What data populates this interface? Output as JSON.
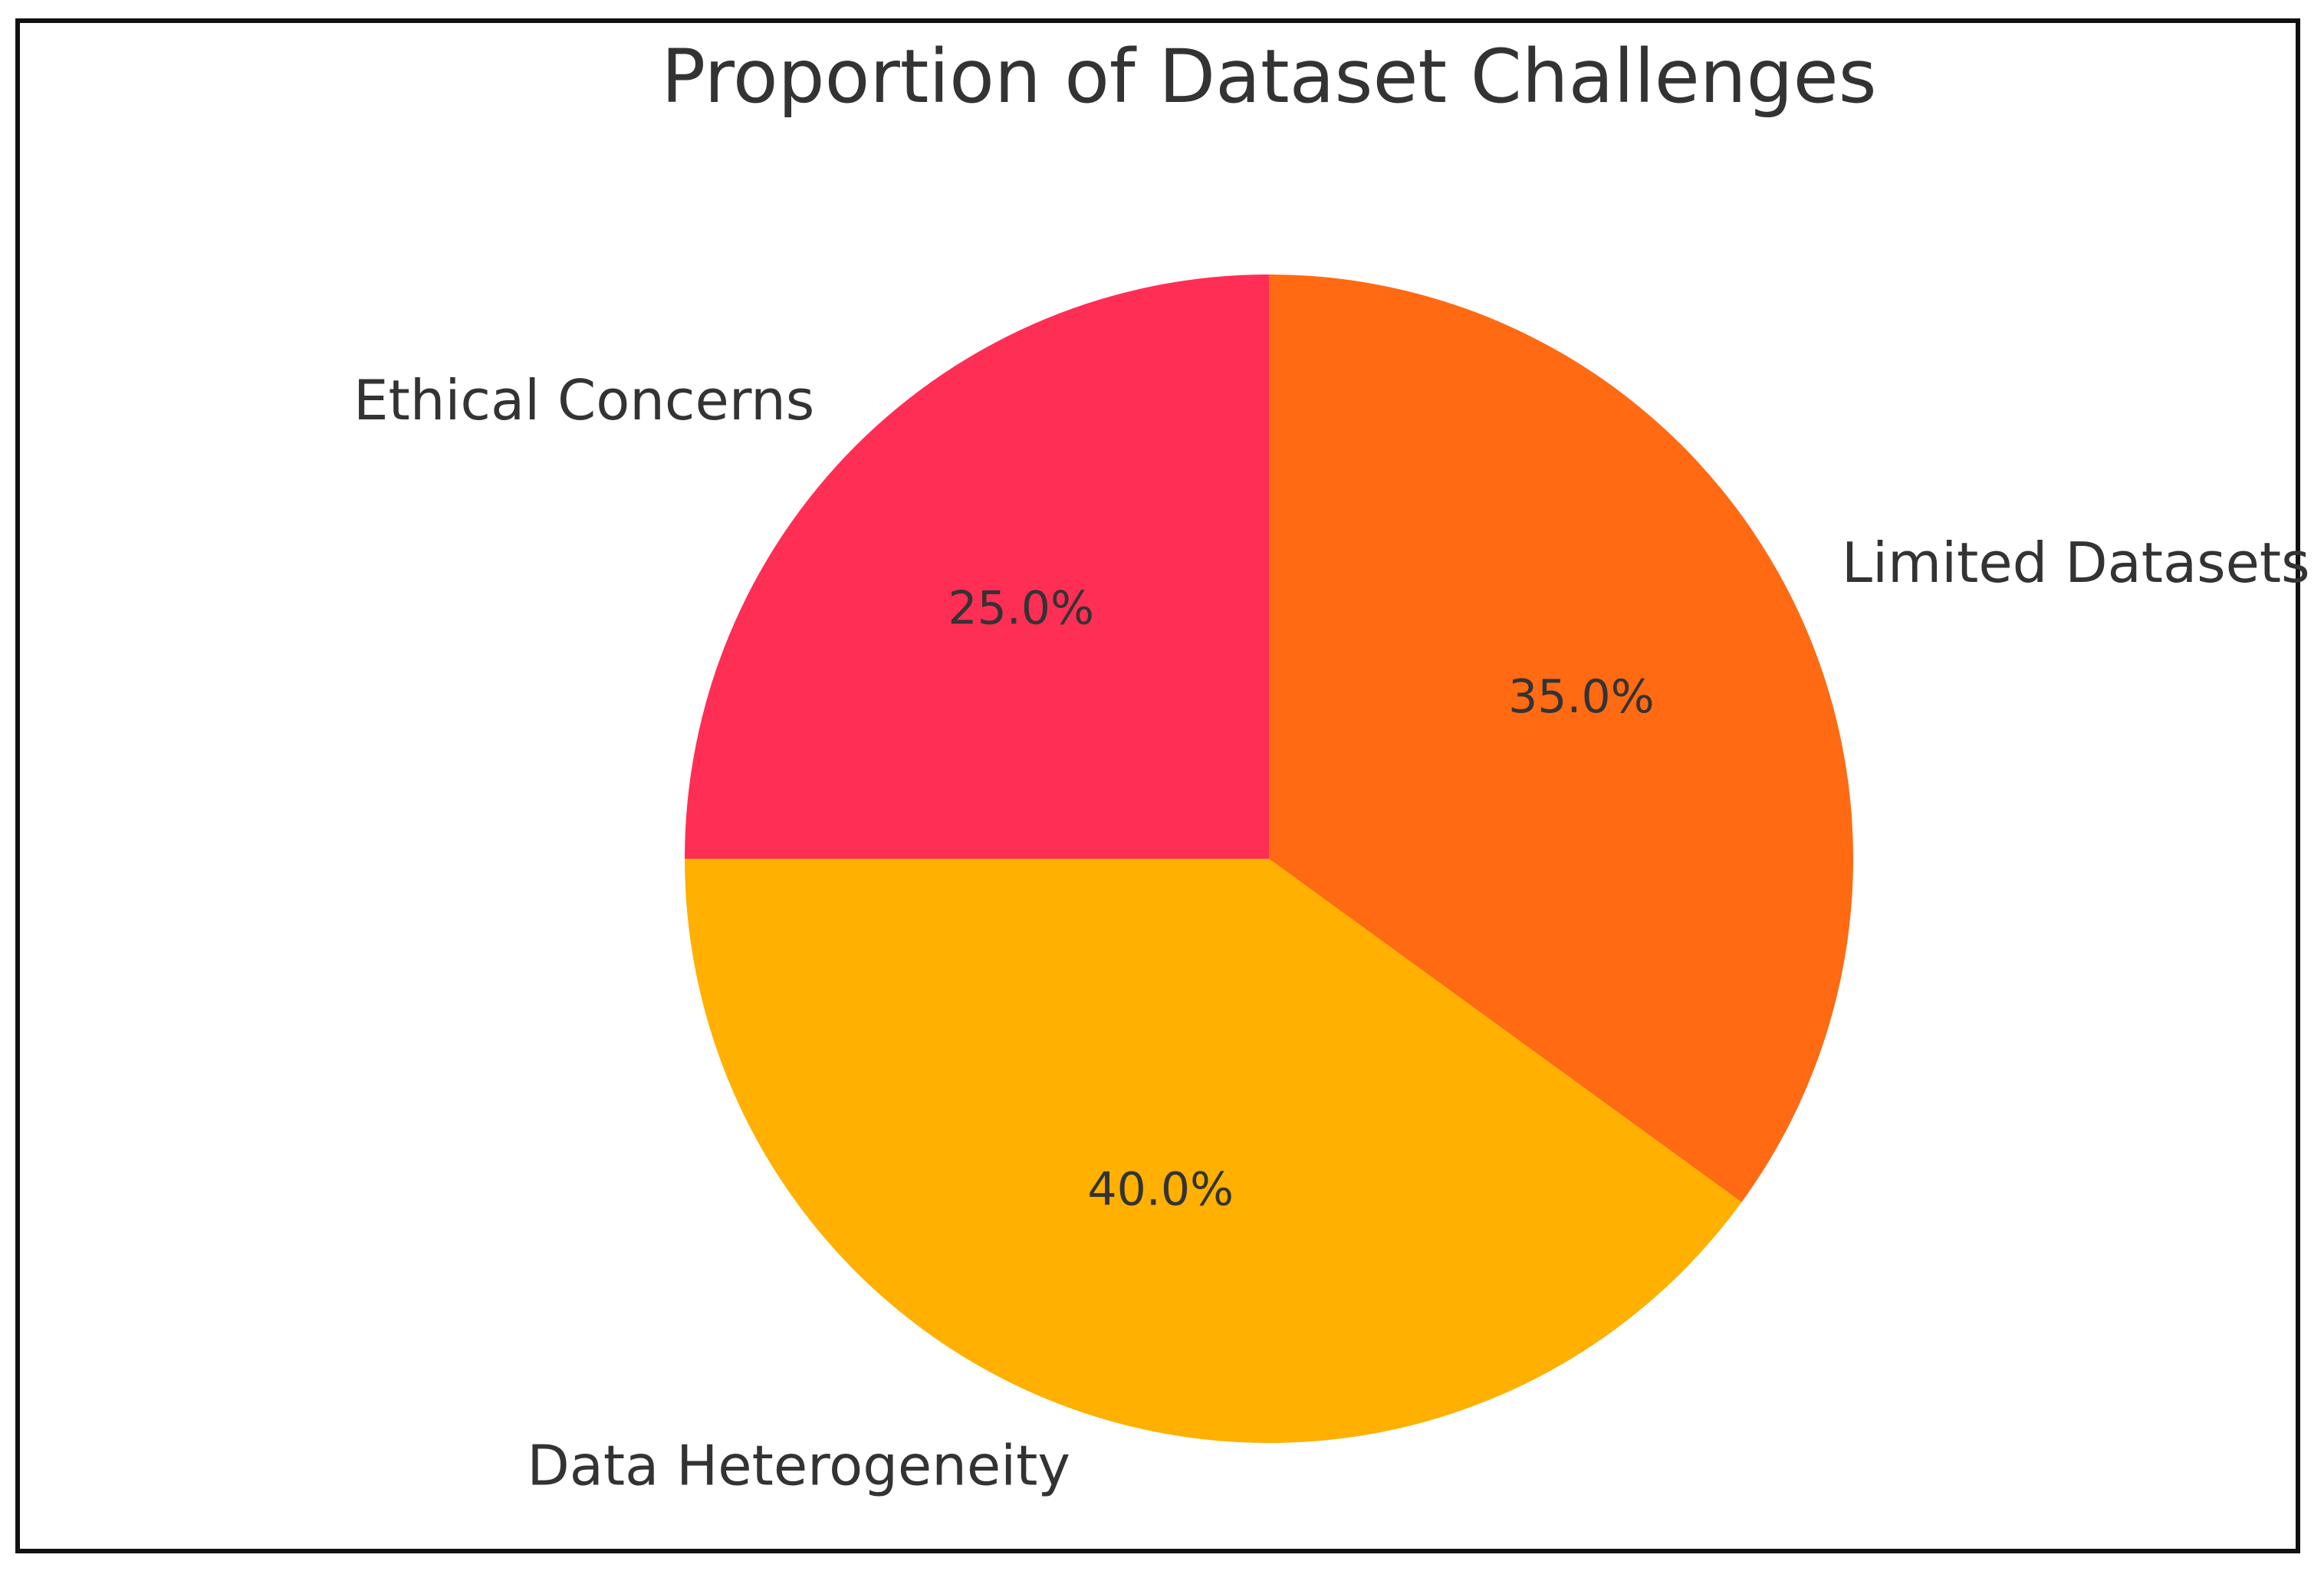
{
  "chart_data": {
    "type": "pie",
    "title": "Proportion of Dataset Challenges",
    "start_angle_deg": 90,
    "direction": "counterclockwise",
    "slices": [
      {
        "label": "Ethical Concerns",
        "value": 25.0,
        "pct_label": "25.0%",
        "color": "#FF2E55"
      },
      {
        "label": "Data Heterogeneity",
        "value": 40.0,
        "pct_label": "40.0%",
        "color": "#FFB000"
      },
      {
        "label": "Limited Datasets",
        "value": 35.0,
        "pct_label": "35.0%",
        "color": "#FF6A13"
      }
    ]
  }
}
